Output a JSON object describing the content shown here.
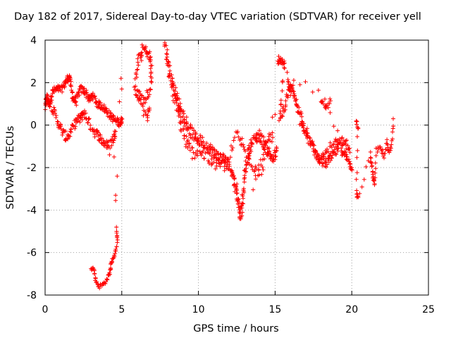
{
  "chart_data": {
    "type": "scatter",
    "title": "Day 182 of 2017, Sidereal Day-to-day VTEC variation (SDTVAR) for receiver yell",
    "xlabel": "GPS time / hours",
    "ylabel": "SDTVAR / TECUs",
    "xlim": [
      0,
      25
    ],
    "ylim": [
      -8,
      4
    ],
    "xticks": [
      "0",
      "5",
      "10",
      "15",
      "20",
      "25"
    ],
    "yticks": [
      "4",
      "2",
      "0",
      "-2",
      "-4",
      "-6",
      "-8"
    ],
    "grid": true,
    "marker": "+",
    "color": "#ff0000",
    "series": [
      {
        "name": "SDTVAR",
        "anchors": [
          [
            0.0,
            0.8
          ],
          [
            0.1,
            1.3
          ],
          [
            0.3,
            1.0
          ],
          [
            0.5,
            1.6
          ],
          [
            0.8,
            1.7
          ],
          [
            1.1,
            1.7
          ],
          [
            1.4,
            2.1
          ],
          [
            1.6,
            2.3
          ],
          [
            1.8,
            1.3
          ],
          [
            2.0,
            1.1
          ],
          [
            2.3,
            1.7
          ],
          [
            2.6,
            1.6
          ],
          [
            2.9,
            1.2
          ],
          [
            3.1,
            1.4
          ],
          [
            3.4,
            1.0
          ],
          [
            3.7,
            0.9
          ],
          [
            4.0,
            0.7
          ],
          [
            4.3,
            0.4
          ],
          [
            4.6,
            0.2
          ],
          [
            4.9,
            0.1
          ],
          [
            5.0,
            0.3
          ]
        ],
        "secondary": [
          [
            0.1,
            1.3
          ],
          [
            0.5,
            0.8
          ],
          [
            0.8,
            0.2
          ],
          [
            1.1,
            -0.3
          ],
          [
            1.4,
            -0.6
          ],
          [
            1.7,
            -0.3
          ],
          [
            2.0,
            0.2
          ],
          [
            2.3,
            0.3
          ],
          [
            2.5,
            0.6
          ],
          [
            2.8,
            0.2
          ],
          [
            3.2,
            -0.3
          ],
          [
            3.5,
            -0.5
          ],
          [
            3.8,
            -0.8
          ],
          [
            4.1,
            -1.0
          ],
          [
            4.4,
            -0.7
          ],
          [
            4.6,
            -0.3
          ]
        ],
        "dip": [
          [
            3.0,
            -6.7
          ],
          [
            3.2,
            -6.8
          ],
          [
            3.3,
            -7.3
          ],
          [
            3.5,
            -7.6
          ],
          [
            3.8,
            -7.5
          ],
          [
            4.0,
            -7.3
          ],
          [
            4.2,
            -7.0
          ],
          [
            4.3,
            -6.6
          ],
          [
            4.4,
            -6.3
          ],
          [
            4.6,
            -6.0
          ],
          [
            4.7,
            -5.5
          ],
          [
            4.65,
            -4.8
          ]
        ],
        "isolated": [
          [
            4.6,
            -3.3
          ],
          [
            4.6,
            -3.55
          ],
          [
            4.7,
            -2.4
          ],
          [
            4.95,
            2.2
          ],
          [
            5.0,
            1.7
          ],
          [
            4.85,
            1.1
          ],
          [
            4.2,
            -1.4
          ],
          [
            4.5,
            -1.5
          ]
        ],
        "segment2": [
          [
            5.8,
            1.9
          ],
          [
            6.1,
            3.0
          ],
          [
            6.4,
            3.6
          ],
          [
            6.7,
            3.4
          ],
          [
            6.9,
            3.0
          ],
          [
            6.9,
            1.8
          ],
          [
            6.5,
            1.1
          ],
          [
            6.2,
            1.3
          ],
          [
            5.9,
            1.6
          ],
          [
            6.6,
            0.4
          ],
          [
            6.8,
            0.8
          ]
        ],
        "segment3": [
          [
            7.8,
            3.9
          ],
          [
            8.0,
            3.0
          ],
          [
            8.2,
            2.2
          ],
          [
            8.4,
            1.8
          ],
          [
            8.6,
            1.2
          ],
          [
            8.8,
            0.8
          ],
          [
            9.1,
            0.3
          ],
          [
            9.4,
            -0.2
          ],
          [
            9.7,
            -0.5
          ],
          [
            10.0,
            -0.7
          ],
          [
            10.3,
            -0.8
          ],
          [
            10.7,
            -1.1
          ],
          [
            11.0,
            -1.3
          ],
          [
            11.3,
            -1.5
          ],
          [
            11.6,
            -1.6
          ],
          [
            11.9,
            -1.8
          ],
          [
            12.2,
            -2.2
          ],
          [
            12.4,
            -2.8
          ],
          [
            12.6,
            -3.5
          ],
          [
            12.7,
            -4.2
          ],
          [
            12.85,
            -3.9
          ],
          [
            13.0,
            -2.5
          ],
          [
            13.2,
            -1.5
          ],
          [
            13.4,
            -1.0
          ],
          [
            13.7,
            -0.6
          ],
          [
            14.0,
            -0.5
          ],
          [
            14.3,
            -0.9
          ],
          [
            14.6,
            -1.3
          ],
          [
            14.9,
            -1.6
          ],
          [
            15.1,
            -1.2
          ]
        ],
        "segment3b": [
          [
            8.3,
            1.4
          ],
          [
            8.7,
            0.5
          ],
          [
            9.0,
            -0.4
          ],
          [
            9.3,
            -1.0
          ],
          [
            9.6,
            -1.3
          ],
          [
            10.0,
            -1.2
          ],
          [
            10.5,
            -1.5
          ],
          [
            11.0,
            -1.8
          ],
          [
            11.5,
            -2.0
          ],
          [
            12.0,
            -1.6
          ],
          [
            12.5,
            -0.4
          ],
          [
            12.9,
            -1.0
          ],
          [
            13.5,
            -1.8
          ],
          [
            14.0,
            -2.2
          ],
          [
            14.5,
            -1.2
          ],
          [
            14.8,
            -0.3
          ],
          [
            13.6,
            -2.9
          ],
          [
            15.0,
            0.5
          ]
        ],
        "segment4": [
          [
            15.2,
            3.1
          ],
          [
            15.4,
            2.9
          ],
          [
            15.6,
            2.8
          ],
          [
            15.3,
            0.3
          ],
          [
            15.6,
            0.8
          ],
          [
            15.9,
            1.6
          ],
          [
            16.1,
            1.8
          ],
          [
            16.3,
            1.2
          ],
          [
            16.5,
            0.8
          ],
          [
            16.8,
            0.2
          ],
          [
            17.1,
            -0.5
          ],
          [
            17.4,
            -1.0
          ],
          [
            17.7,
            -1.4
          ],
          [
            18.0,
            -1.7
          ],
          [
            18.3,
            -1.8
          ],
          [
            18.6,
            -1.6
          ],
          [
            18.9,
            -1.3
          ],
          [
            19.2,
            -1.0
          ],
          [
            19.5,
            -1.4
          ],
          [
            19.8,
            -1.7
          ],
          [
            20.0,
            -2.0
          ]
        ],
        "segment4b": [
          [
            16.6,
            0.1
          ],
          [
            17.0,
            -0.3
          ],
          [
            17.4,
            -0.9
          ],
          [
            17.8,
            -1.6
          ],
          [
            18.2,
            -1.4
          ],
          [
            18.6,
            -1.0
          ],
          [
            19.0,
            -0.8
          ],
          [
            19.3,
            -0.8
          ],
          [
            19.6,
            -0.9
          ],
          [
            19.9,
            -1.2
          ],
          [
            18.0,
            1.1
          ],
          [
            18.3,
            0.8
          ],
          [
            18.6,
            1.2
          ],
          [
            15.8,
            2.4
          ],
          [
            16.0,
            1.4
          ]
        ],
        "segment5": [
          [
            20.3,
            0.2
          ],
          [
            20.4,
            -0.1
          ],
          [
            20.3,
            -3.2
          ],
          [
            20.4,
            -3.5
          ],
          [
            21.2,
            -1.4
          ],
          [
            21.3,
            -1.9
          ],
          [
            21.4,
            -2.5
          ],
          [
            21.5,
            -2.9
          ],
          [
            21.6,
            -1.2
          ],
          [
            21.9,
            -1.0
          ],
          [
            22.1,
            -1.6
          ],
          [
            22.3,
            -0.8
          ],
          [
            22.4,
            -1.3
          ],
          [
            22.6,
            -0.9
          ],
          [
            22.7,
            0.3
          ]
        ]
      }
    ]
  }
}
